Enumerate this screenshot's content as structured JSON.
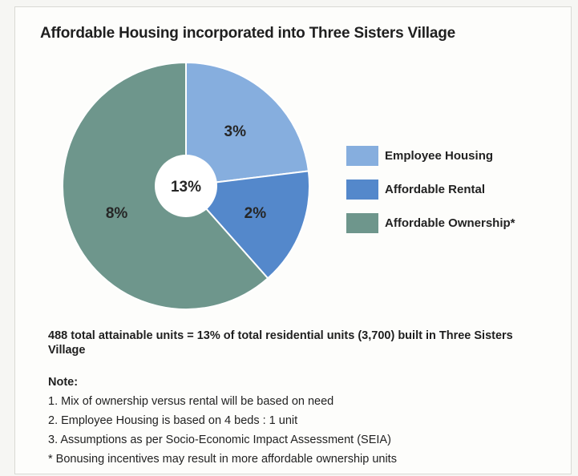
{
  "chart_data": {
    "type": "pie",
    "title": "Affordable Housing incorporated into Three Sisters Village",
    "center_label": "13%",
    "slices": [
      {
        "name": "Employee Housing",
        "value": 3,
        "label": "3%",
        "color": "#86aede"
      },
      {
        "name": "Affordable Rental",
        "value": 2,
        "label": "2%",
        "color": "#5488cb"
      },
      {
        "name": "Affordable Ownership*",
        "value": 8,
        "label": "8%",
        "color": "#6e968c"
      }
    ]
  },
  "summary": "488 total attainable units = 13% of total residential units (3,700) built in Three Sisters Village",
  "notes": {
    "heading": "Note:",
    "items": [
      "1. Mix of ownership versus rental will be based on need",
      "2. Employee Housing is based on 4 beds : 1 unit",
      "3. Assumptions as per Socio-Economic Impact Assessment (SEIA)",
      "* Bonusing incentives may result in more affordable ownership units"
    ]
  }
}
